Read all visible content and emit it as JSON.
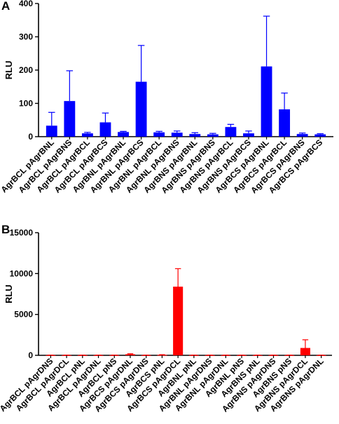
{
  "chart_data": [
    {
      "panel": "A",
      "type": "bar",
      "ylabel": "RLU",
      "ylim": [
        0,
        400
      ],
      "yticks": [
        0,
        100,
        200,
        300,
        400
      ],
      "color": "#0000ff",
      "categories": [
        "AgrBCL pAgrBNL",
        "AgrBCL pAgrBNS",
        "AgrBCL pAgrBCL",
        "AgrBCL pAgrBCS",
        "AgrBNL pAgrBNL",
        "AgrBNL pAgrBCS",
        "AgrBNL pAgrBCL",
        "AgrBNL pAgrBNS",
        "AgrBNS pAgrBNL",
        "AgrBNS pAgrBNS",
        "AgrBNS pAgrBCL",
        "AgrBNS pAgrBCS",
        "AgrBCS pAgrBNL",
        "AgrBCS pAgrBCL",
        "AgrBCS pAgrBNS",
        "AgrBCS pAgrBCS"
      ],
      "values": [
        33,
        107,
        10,
        43,
        14,
        165,
        13,
        12,
        8,
        7,
        29,
        10,
        211,
        82,
        8,
        7
      ],
      "errors": [
        40,
        91,
        3,
        28,
        2,
        109,
        3,
        5,
        4,
        3,
        8,
        7,
        151,
        49,
        3,
        2
      ],
      "grid": false,
      "legend": "none"
    },
    {
      "panel": "B",
      "type": "bar",
      "ylabel": "RLU",
      "ylim": [
        0,
        15000
      ],
      "yticks": [
        0,
        5000,
        10000,
        15000
      ],
      "color": "#ff0000",
      "categories": [
        "AgrBCL pAgrDNS",
        "AgrBCL pAgrDCL",
        "AgrBCL pNL",
        "AgrBCL pAgrDNL",
        "AgrBCL pNS",
        "AgrBCS pAgrDNL",
        "AgrBCS pAgrDNS",
        "AgrBCS pNL",
        "AgrBCS pAgrDCL",
        "AgrBNL pNL",
        "AgrBNL pAgrDNS",
        "AgrBNL pAgrDNL",
        "AgrBNL pNS",
        "AgrBNS pNL",
        "AgrBNS pAgrDNS",
        "AgrBNS pNS",
        "AgrBNS pAgrDCL",
        "AgrBNS pAgrDNL"
      ],
      "values": [
        20,
        20,
        20,
        20,
        20,
        130,
        20,
        50,
        8400,
        20,
        20,
        20,
        20,
        20,
        20,
        20,
        900,
        20
      ],
      "errors": [
        10,
        10,
        10,
        10,
        10,
        60,
        10,
        30,
        2200,
        10,
        10,
        10,
        10,
        10,
        10,
        10,
        1000,
        10
      ],
      "grid": false,
      "legend": "none"
    }
  ]
}
